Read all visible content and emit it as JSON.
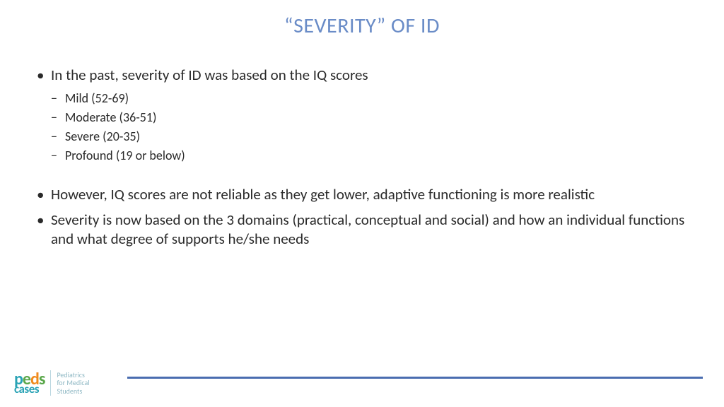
{
  "title": "“SEVERITY” OF ID",
  "bullets": {
    "b0": "In the past, severity of ID was based on the IQ scores",
    "sub": {
      "s0": "Mild (52-69)",
      "s1": "Moderate (36-51)",
      "s2": "Severe (20-35)",
      "s3": "Profound (19 or below)"
    },
    "b1": "However, IQ scores are not reliable as they get lower, adaptive functioning is more realistic",
    "b2": "Severity is now based on the 3 domains (practical, conceptual and social) and how an individual functions and what degree of supports he/she needs"
  },
  "logo": {
    "line1": "Pediatrics",
    "line2": "for Medical",
    "line3": "Students"
  },
  "colors": {
    "title": "#6a8cc7",
    "text": "#2a2a2a",
    "rule": "#4a6db0",
    "logo_green": "#5aa74a",
    "logo_teal": "#2aa3b5",
    "logo_orange": "#f08a1d",
    "logo_caption": "#8fb8c4"
  },
  "typography": {
    "title_fontsize": 30,
    "body_fontsize": 21,
    "sub_fontsize": 18,
    "logo_caption_fontsize": 10
  }
}
